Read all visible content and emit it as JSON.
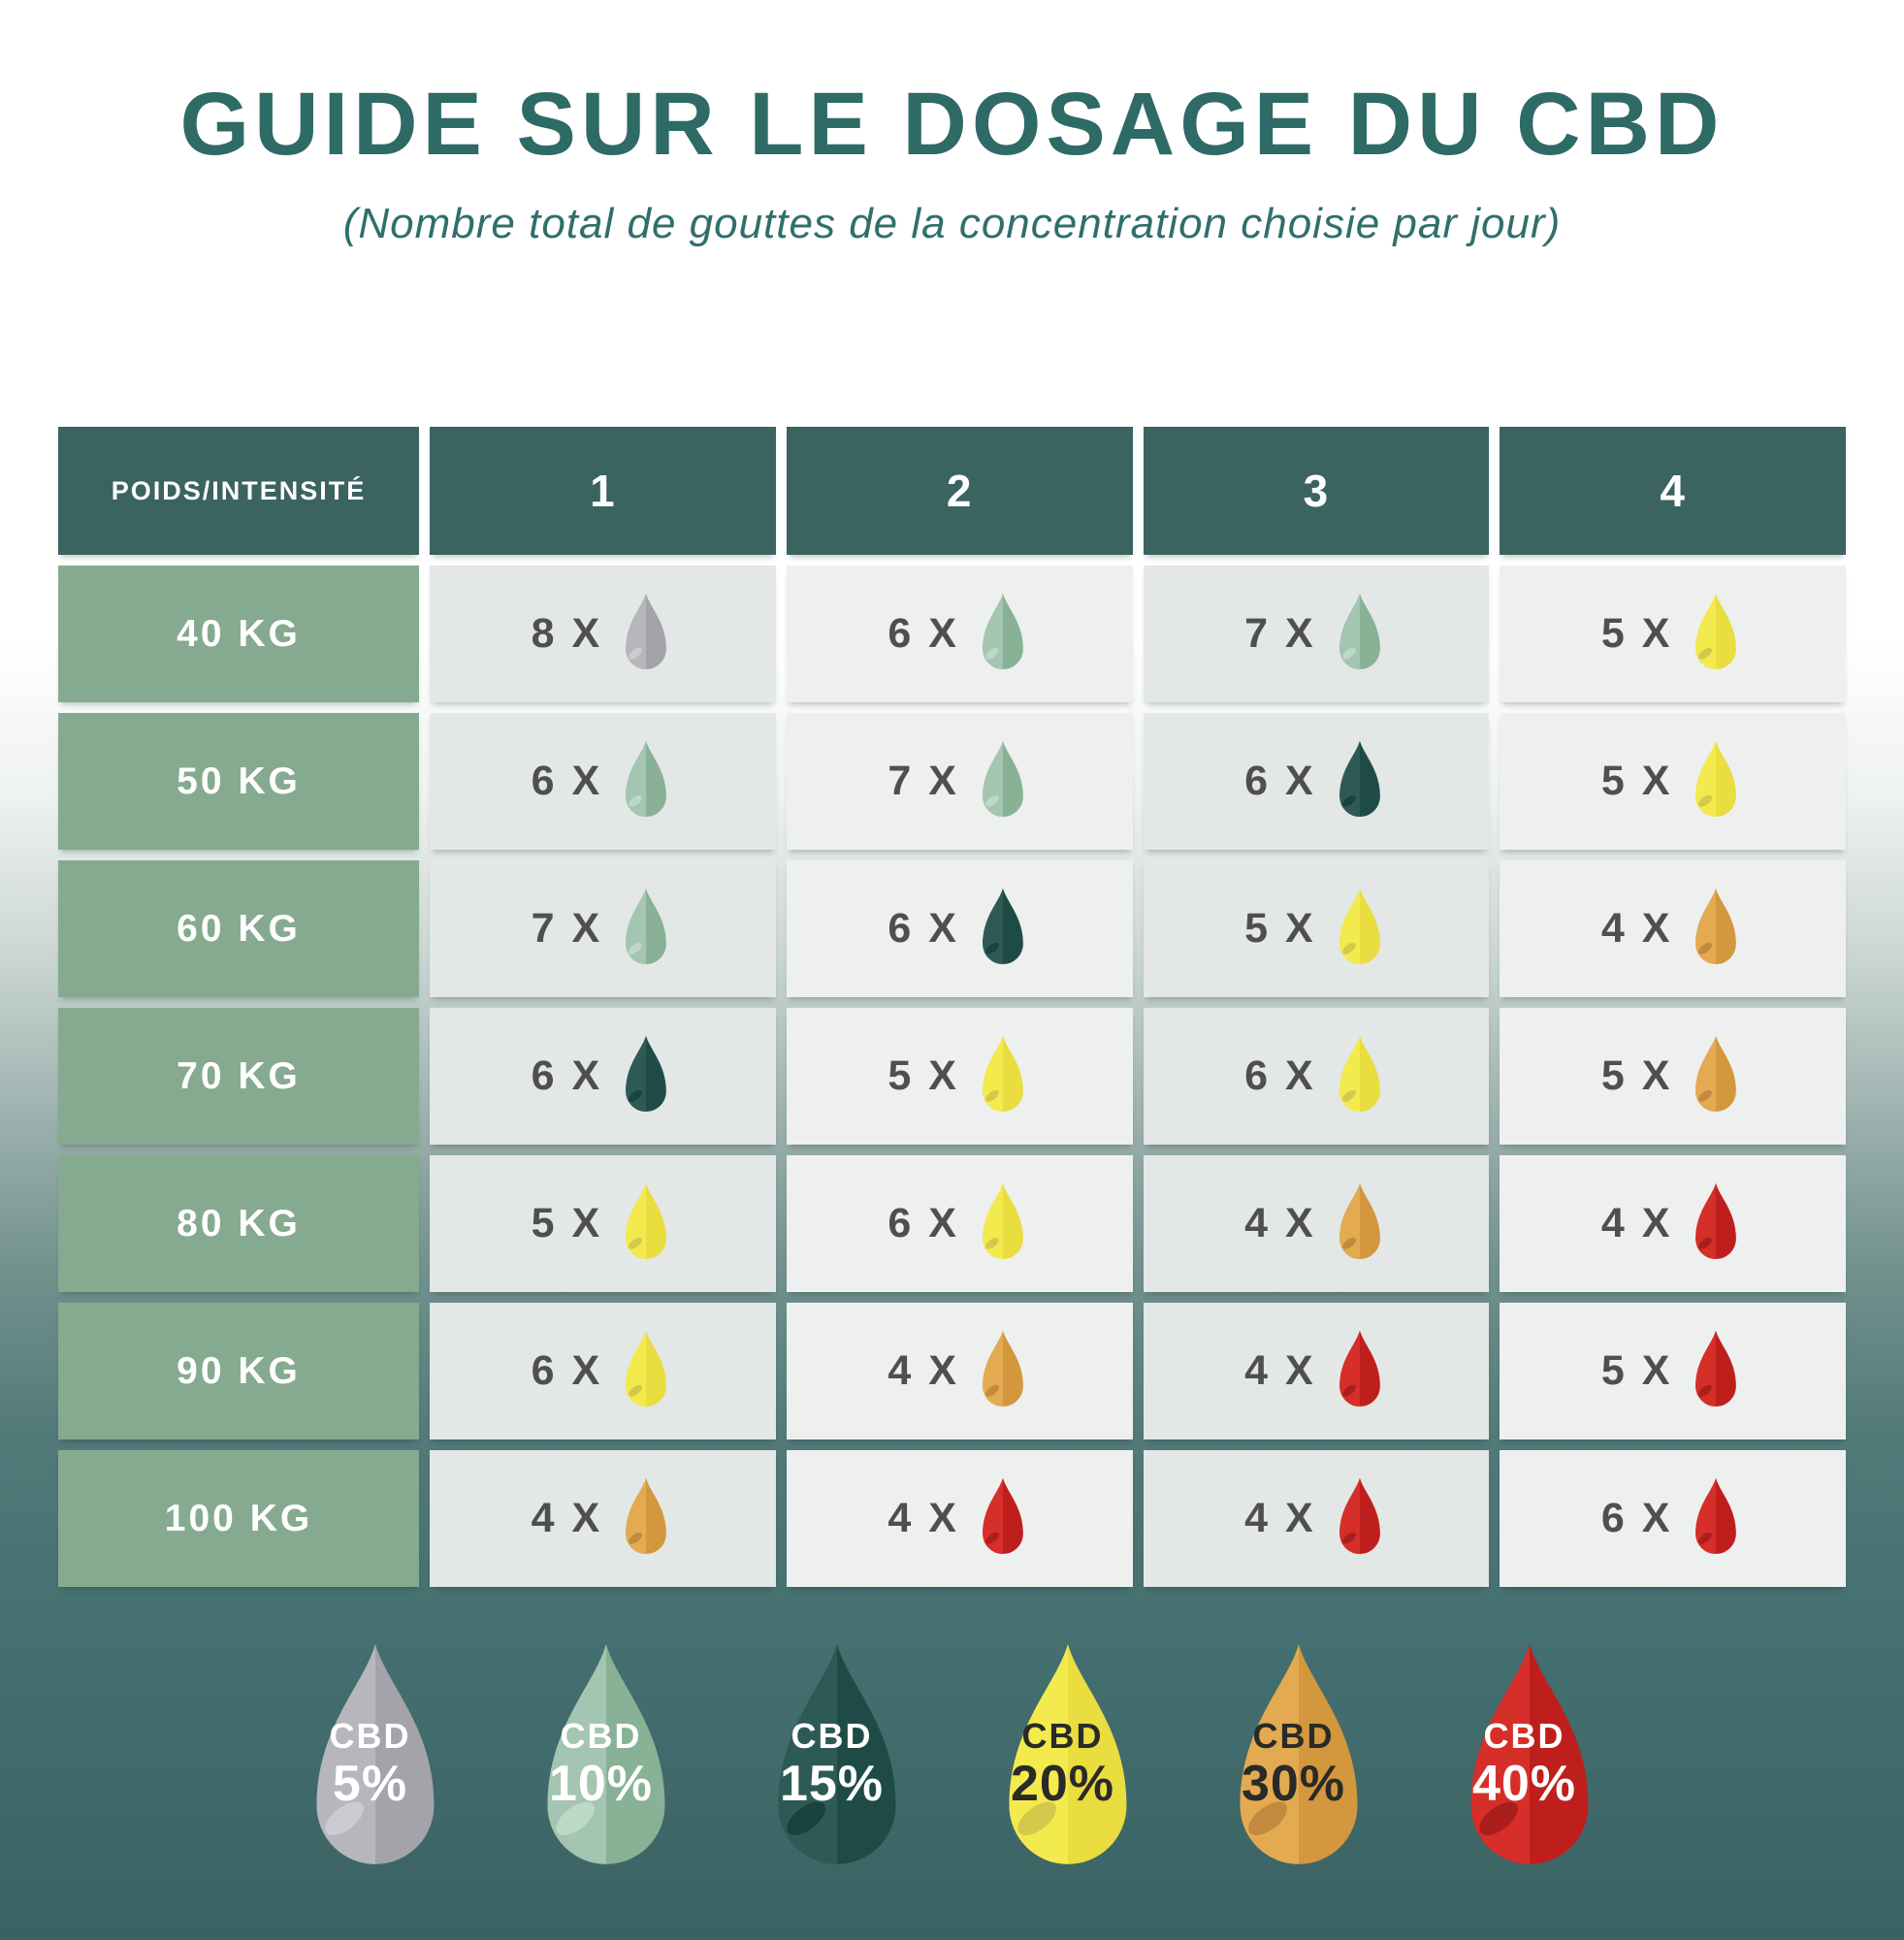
{
  "title": "GUIDE SUR LE DOSAGE DU CBD",
  "subtitle": "(Nombre total de gouttes de la concentration choisie par jour)",
  "colors": {
    "title_color": "#2e6a66",
    "subtitle_color": "#2f6f6b",
    "header_bg": "#3b6360",
    "weight_bg": "#85aa90",
    "cell_bg_a": "#e3e7e6",
    "cell_bg_b": "#eef0ef",
    "count_color": "#4f4f51",
    "page_top": "#ffffff",
    "page_bottom": "#3b6263"
  },
  "drop_colors": {
    "gray": {
      "light": "#b6b6bc",
      "dark": "#a3a3a9",
      "accent": "#cbcbd1"
    },
    "green": {
      "light": "#a3c5b1",
      "dark": "#88b196",
      "accent": "#bcd8c6"
    },
    "teal": {
      "light": "#2e5a55",
      "dark": "#1f4b47",
      "accent": "#1a423e"
    },
    "yellow": {
      "light": "#f3ea4e",
      "dark": "#e9dd3f",
      "accent": "#d5c84a"
    },
    "orange": {
      "light": "#e3aa51",
      "dark": "#d3973d",
      "accent": "#c18a3c"
    },
    "red": {
      "light": "#d62e28",
      "dark": "#bf1f1c",
      "accent": "#aa1e1c"
    }
  },
  "table": {
    "count_suffix": "X"
  },
  "chart_data": {
    "type": "table",
    "title": "GUIDE SUR LE DOSAGE DU CBD",
    "subtitle": "(Nombre total de gouttes de la concentration choisie par jour)",
    "row_header": "POIDS/INTENSITÉ",
    "columns": [
      "1",
      "2",
      "3",
      "4"
    ],
    "rows": [
      {
        "weight": "40 KG",
        "cells": [
          {
            "count": 8,
            "color": "gray",
            "concentration": "5%"
          },
          {
            "count": 6,
            "color": "green",
            "concentration": "10%"
          },
          {
            "count": 7,
            "color": "green",
            "concentration": "10%"
          },
          {
            "count": 5,
            "color": "yellow",
            "concentration": "20%"
          }
        ]
      },
      {
        "weight": "50 KG",
        "cells": [
          {
            "count": 6,
            "color": "green",
            "concentration": "10%"
          },
          {
            "count": 7,
            "color": "green",
            "concentration": "10%"
          },
          {
            "count": 6,
            "color": "teal",
            "concentration": "15%"
          },
          {
            "count": 5,
            "color": "yellow",
            "concentration": "20%"
          }
        ]
      },
      {
        "weight": "60 KG",
        "cells": [
          {
            "count": 7,
            "color": "green",
            "concentration": "10%"
          },
          {
            "count": 6,
            "color": "teal",
            "concentration": "15%"
          },
          {
            "count": 5,
            "color": "yellow",
            "concentration": "20%"
          },
          {
            "count": 4,
            "color": "orange",
            "concentration": "30%"
          }
        ]
      },
      {
        "weight": "70 KG",
        "cells": [
          {
            "count": 6,
            "color": "teal",
            "concentration": "15%"
          },
          {
            "count": 5,
            "color": "yellow",
            "concentration": "20%"
          },
          {
            "count": 6,
            "color": "yellow",
            "concentration": "20%"
          },
          {
            "count": 5,
            "color": "orange",
            "concentration": "30%"
          }
        ]
      },
      {
        "weight": "80 KG",
        "cells": [
          {
            "count": 5,
            "color": "yellow",
            "concentration": "20%"
          },
          {
            "count": 6,
            "color": "yellow",
            "concentration": "20%"
          },
          {
            "count": 4,
            "color": "orange",
            "concentration": "30%"
          },
          {
            "count": 4,
            "color": "red",
            "concentration": "40%"
          }
        ]
      },
      {
        "weight": "90 KG",
        "cells": [
          {
            "count": 6,
            "color": "yellow",
            "concentration": "20%"
          },
          {
            "count": 4,
            "color": "orange",
            "concentration": "30%"
          },
          {
            "count": 4,
            "color": "red",
            "concentration": "40%"
          },
          {
            "count": 5,
            "color": "red",
            "concentration": "40%"
          }
        ]
      },
      {
        "weight": "100 KG",
        "cells": [
          {
            "count": 4,
            "color": "orange",
            "concentration": "30%"
          },
          {
            "count": 4,
            "color": "red",
            "concentration": "40%"
          },
          {
            "count": 4,
            "color": "red",
            "concentration": "40%"
          },
          {
            "count": 6,
            "color": "red",
            "concentration": "40%"
          }
        ]
      }
    ],
    "legend": [
      {
        "label": "CBD",
        "percent": "5%",
        "color": "gray",
        "text_color": "#ffffff"
      },
      {
        "label": "CBD",
        "percent": "10%",
        "color": "green",
        "text_color": "#ffffff"
      },
      {
        "label": "CBD",
        "percent": "15%",
        "color": "teal",
        "text_color": "#ffffff"
      },
      {
        "label": "CBD",
        "percent": "20%",
        "color": "yellow",
        "text_color": "#2a2a28"
      },
      {
        "label": "CBD",
        "percent": "30%",
        "color": "orange",
        "text_color": "#2a2a28"
      },
      {
        "label": "CBD",
        "percent": "40%",
        "color": "red",
        "text_color": "#ffffff"
      }
    ]
  }
}
